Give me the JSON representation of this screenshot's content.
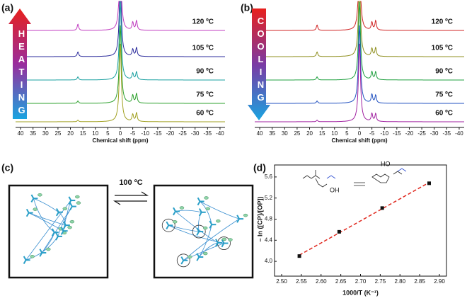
{
  "chart_data": [
    {
      "type": "spectra",
      "panel_label": "(a)",
      "xlabel": "Chemical shift (ppm)",
      "arrow_text": "HEATING",
      "arrow_direction": "up",
      "xlim": [
        42,
        -42
      ],
      "xticks": [
        40,
        35,
        30,
        25,
        20,
        15,
        10,
        5,
        0,
        -5,
        -10,
        -15,
        -20,
        -25,
        -30,
        -35,
        -40
      ],
      "peaks_ppm": [
        17,
        0,
        -5,
        -6.5
      ],
      "series": [
        {
          "name": "120 ºC",
          "color": "#c03cc0",
          "values": [
            8,
            100,
            10,
            12
          ]
        },
        {
          "name": "105 ºC",
          "color": "#2c2c9c",
          "values": [
            6,
            100,
            9,
            11
          ]
        },
        {
          "name": "90 ºC",
          "color": "#1aa0a0",
          "values": [
            4,
            100,
            8,
            10
          ]
        },
        {
          "name": "75 ºC",
          "color": "#2ca02c",
          "values": [
            3,
            100,
            10,
            12
          ]
        },
        {
          "name": "60 ºC",
          "color": "#a0a020",
          "values": [
            2,
            100,
            9,
            11
          ]
        }
      ]
    },
    {
      "type": "spectra",
      "panel_label": "(b)",
      "xlabel": "Chemical shift (ppm)",
      "arrow_text": "COOLING",
      "arrow_direction": "down",
      "xlim": [
        42,
        -42
      ],
      "xticks": [
        40,
        35,
        30,
        25,
        20,
        15,
        10,
        5,
        0,
        -5,
        -10,
        -15,
        -20,
        -25,
        -30,
        -35,
        -40
      ],
      "peaks_ppm": [
        17,
        0,
        -5,
        -6.5
      ],
      "series": [
        {
          "name": "120 ºC",
          "color": "#d02424",
          "values": [
            7,
            100,
            10,
            12
          ]
        },
        {
          "name": "105 ºC",
          "color": "#909020",
          "values": [
            6,
            100,
            10,
            11
          ]
        },
        {
          "name": "90 ºC",
          "color": "#20a040",
          "values": [
            4,
            100,
            10,
            10
          ]
        },
        {
          "name": "75 ºC",
          "color": "#2050c0",
          "values": [
            3,
            100,
            11,
            10
          ]
        },
        {
          "name": "60 ºC",
          "color": "#a020a0",
          "values": [
            2,
            100,
            10,
            10
          ]
        }
      ]
    },
    {
      "type": "scatter",
      "panel_label": "(d)",
      "xlabel": "1000/T (K⁻¹)",
      "ylabel": "– ln ([CP]/[OP])",
      "x": [
        2.545,
        2.646,
        2.755,
        2.874
      ],
      "values": [
        4.1,
        4.56,
        5.01,
        5.48
      ],
      "color": "#111111",
      "fit_color": "#e0281e",
      "xlim": [
        2.5,
        2.9
      ],
      "ylim": [
        3.8,
        5.8
      ],
      "xticks": [
        {
          "value": 2.5,
          "label": "2.50"
        },
        2.55,
        {
          "value": 2.6,
          "label": "2.60"
        },
        2.65,
        {
          "value": 2.7,
          "label": "2.70"
        },
        2.75,
        {
          "value": 2.8,
          "label": "2.80"
        },
        2.85,
        {
          "value": 2.9,
          "label": "2.90"
        }
      ],
      "yticks": [
        {
          "value": 4,
          "label": "4.0"
        },
        4.4,
        4.8,
        5.2,
        5.6
      ],
      "structure_labels": [
        "OH",
        "HO"
      ]
    }
  ],
  "schematic": {
    "panel_label": "(c)",
    "condition": "100 ºC"
  }
}
